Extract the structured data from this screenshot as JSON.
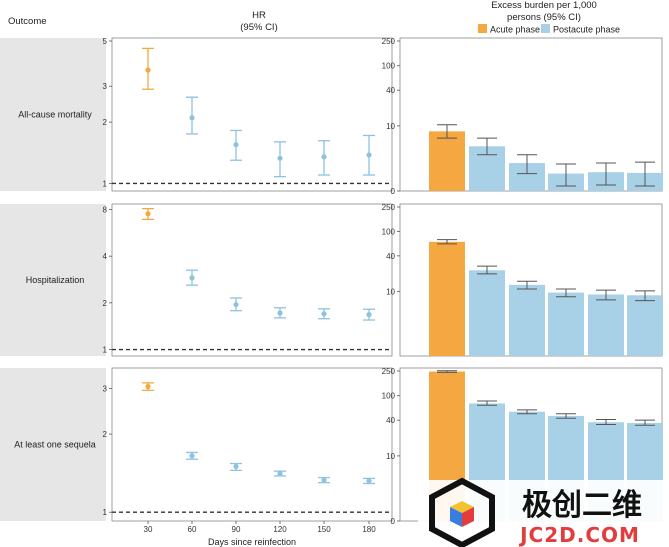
{
  "header": {
    "outcome": "Outcome",
    "hr_title": "HR",
    "hr_subtitle": "(95% CI)",
    "burden_title": "Excess burden per 1,000",
    "burden_subtitle": "persons (95% CI)"
  },
  "legend": [
    {
      "label": "Acute phase",
      "color": "#f5a842"
    },
    {
      "label": "Postacute phase",
      "color": "#a8d1e7"
    }
  ],
  "x_axis_label": "Days since reinfection",
  "colors": {
    "acute": "#f5a842",
    "postacute": "#a8d1e7",
    "postacute_stroke": "#8dc2e0",
    "panel_bg": "#e6e6e6",
    "errorbar": "#555555"
  },
  "chart_data": [
    {
      "type": "scatter",
      "row_label": "All-cause mortality",
      "yscale": "log",
      "ylim": [
        0.95,
        5
      ],
      "yticks": [
        1,
        2,
        3,
        5
      ],
      "reference_line": 1,
      "categories": [
        "30",
        "60",
        "90",
        "120",
        "150",
        "180"
      ],
      "points": [
        {
          "x": 30,
          "y": 3.6,
          "lo": 2.9,
          "hi": 4.6,
          "phase": "acute"
        },
        {
          "x": 60,
          "y": 2.1,
          "lo": 1.75,
          "hi": 2.65,
          "phase": "postacute"
        },
        {
          "x": 90,
          "y": 1.55,
          "lo": 1.3,
          "hi": 1.82,
          "phase": "postacute"
        },
        {
          "x": 120,
          "y": 1.33,
          "lo": 1.08,
          "hi": 1.6,
          "phase": "postacute"
        },
        {
          "x": 150,
          "y": 1.35,
          "lo": 1.1,
          "hi": 1.62,
          "phase": "postacute"
        },
        {
          "x": 180,
          "y": 1.38,
          "lo": 1.1,
          "hi": 1.72,
          "phase": "postacute"
        }
      ]
    },
    {
      "type": "bar",
      "row_label": "All-cause mortality",
      "yscale": "symlog",
      "ylim": [
        0,
        250
      ],
      "yticks": [
        0,
        10,
        40,
        100,
        250
      ],
      "categories": [
        "30",
        "60",
        "90",
        "120",
        "150",
        "180"
      ],
      "values": [
        8,
        4.2,
        1.8,
        0.9,
        1.0,
        0.95
      ],
      "lo": [
        6,
        2.8,
        0.9,
        0.2,
        0.25,
        0.2
      ],
      "hi": [
        10.5,
        6,
        2.8,
        1.7,
        1.8,
        1.9
      ],
      "phases": [
        "acute",
        "postacute",
        "postacute",
        "postacute",
        "postacute",
        "postacute"
      ]
    },
    {
      "type": "scatter",
      "row_label": "Hospitalization",
      "yscale": "log",
      "ylim": [
        0.95,
        8.3
      ],
      "yticks": [
        1,
        2,
        4,
        8
      ],
      "reference_line": 1,
      "categories": [
        "30",
        "60",
        "90",
        "120",
        "150",
        "180"
      ],
      "points": [
        {
          "x": 30,
          "y": 7.5,
          "lo": 6.9,
          "hi": 8.1,
          "phase": "acute"
        },
        {
          "x": 60,
          "y": 2.9,
          "lo": 2.6,
          "hi": 3.25,
          "phase": "postacute"
        },
        {
          "x": 90,
          "y": 1.95,
          "lo": 1.78,
          "hi": 2.15,
          "phase": "postacute"
        },
        {
          "x": 120,
          "y": 1.72,
          "lo": 1.6,
          "hi": 1.86,
          "phase": "postacute"
        },
        {
          "x": 150,
          "y": 1.7,
          "lo": 1.58,
          "hi": 1.83,
          "phase": "postacute"
        },
        {
          "x": 180,
          "y": 1.68,
          "lo": 1.55,
          "hi": 1.82,
          "phase": "postacute"
        }
      ]
    },
    {
      "type": "bar",
      "row_label": "Hospitalization",
      "yscale": "symlog",
      "ylim": [
        0,
        250
      ],
      "yticks": [
        10,
        40,
        100,
        250
      ],
      "categories": [
        "30",
        "60",
        "90",
        "120",
        "150",
        "180"
      ],
      "values": [
        68,
        23,
        13,
        9.5,
        8.8,
        8.5
      ],
      "lo": [
        63,
        20,
        11,
        8,
        7,
        6.8
      ],
      "hi": [
        74,
        27,
        15,
        11,
        10.5,
        10.2
      ],
      "phases": [
        "acute",
        "postacute",
        "postacute",
        "postacute",
        "postacute",
        "postacute"
      ]
    },
    {
      "type": "scatter",
      "row_label": "At least one sequela",
      "yscale": "log",
      "ylim": [
        0.95,
        3.5
      ],
      "yticks": [
        1,
        2,
        3
      ],
      "reference_line": 1,
      "categories": [
        "30",
        "60",
        "90",
        "120",
        "150",
        "180"
      ],
      "points": [
        {
          "x": 30,
          "y": 3.05,
          "lo": 2.95,
          "hi": 3.15,
          "phase": "acute"
        },
        {
          "x": 60,
          "y": 1.65,
          "lo": 1.6,
          "hi": 1.7,
          "phase": "postacute"
        },
        {
          "x": 90,
          "y": 1.5,
          "lo": 1.45,
          "hi": 1.54,
          "phase": "postacute"
        },
        {
          "x": 120,
          "y": 1.41,
          "lo": 1.38,
          "hi": 1.44,
          "phase": "postacute"
        },
        {
          "x": 150,
          "y": 1.33,
          "lo": 1.3,
          "hi": 1.36,
          "phase": "postacute"
        },
        {
          "x": 180,
          "y": 1.32,
          "lo": 1.29,
          "hi": 1.35,
          "phase": "postacute"
        }
      ]
    },
    {
      "type": "bar",
      "row_label": "At least one sequela",
      "yscale": "symlog",
      "ylim": [
        0,
        250
      ],
      "yticks": [
        0,
        10,
        40,
        100,
        250
      ],
      "categories": [
        "30",
        "60",
        "90",
        "120",
        "150",
        "180"
      ],
      "values": [
        245,
        75,
        55,
        47,
        37,
        36
      ],
      "lo": [
        238,
        70,
        51,
        43,
        34,
        33
      ],
      "hi": [
        252,
        82,
        59,
        51,
        41,
        40
      ],
      "phases": [
        "acute",
        "postacute",
        "postacute",
        "postacute",
        "postacute",
        "postacute"
      ]
    }
  ],
  "watermark": {
    "text_cn": "极创二维",
    "text_en": "JC2D.COM"
  }
}
